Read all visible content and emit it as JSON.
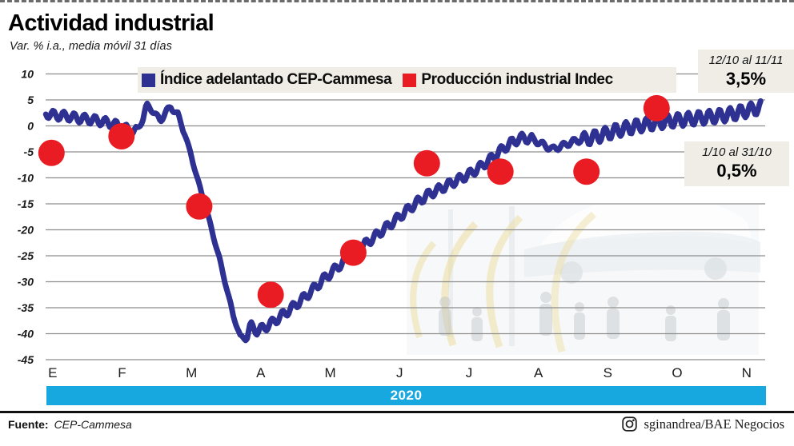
{
  "header": {
    "title": "Actividad industrial",
    "subtitle": "Var. % i.a., media móvil 31 días"
  },
  "legend": {
    "items": [
      {
        "label": "Índice adelantado CEP-Cammesa",
        "color": "#2e3192"
      },
      {
        "label": "Producción industrial Indec",
        "color": "#e91c23"
      }
    ]
  },
  "annotations": [
    {
      "period": "12/10 al 11/11",
      "value": "3,5%"
    },
    {
      "period": "1/10 al 31/10",
      "value": "0,5%"
    }
  ],
  "x_axis": {
    "year_band": "2020"
  },
  "footer": {
    "source_label": "Fuente:",
    "source_value": "CEP-Cammesa",
    "credit": "sginandrea/BAE Negocios",
    "credit_icon": "instagram-icon"
  },
  "colors": {
    "line_blue": "#2e3192",
    "dot_red": "#e91c23",
    "year_band_cyan": "#17a8df",
    "panel_beige": "#f0ede7",
    "gridline": "#8d8d8d"
  },
  "chart_data": {
    "type": "line",
    "title": "Actividad industrial",
    "unit": "Var. % i.a., media móvil 31 días",
    "x_months": [
      "E",
      "F",
      "M",
      "A",
      "M",
      "J",
      "J",
      "A",
      "S",
      "O",
      "N"
    ],
    "year": "2020",
    "ylim": [
      -45,
      10
    ],
    "y_ticks": [
      10,
      5,
      0,
      -5,
      -10,
      -15,
      -20,
      -25,
      -30,
      -35,
      -40,
      -45
    ],
    "grid": "horizontal",
    "legend_position": "top",
    "series": [
      {
        "name": "Índice adelantado CEP-Cammesa",
        "type": "line",
        "color": "#2e3192",
        "trend_points": [
          [
            -0.1,
            2.4
          ],
          [
            0.05,
            2.0
          ],
          [
            0.2,
            1.9
          ],
          [
            0.35,
            1.5
          ],
          [
            0.5,
            1.3
          ],
          [
            0.65,
            1.0
          ],
          [
            0.8,
            0.6
          ],
          [
            0.95,
            0.0
          ],
          [
            1.1,
            -0.8
          ],
          [
            1.22,
            -1.0
          ],
          [
            1.3,
            1.5
          ],
          [
            1.35,
            4.0
          ],
          [
            1.45,
            2.8
          ],
          [
            1.55,
            0.9
          ],
          [
            1.63,
            2.8
          ],
          [
            1.7,
            3.6
          ],
          [
            1.8,
            2.2
          ],
          [
            1.9,
            -1.5
          ],
          [
            2.0,
            -6.0
          ],
          [
            2.1,
            -11.0
          ],
          [
            2.2,
            -15.5
          ],
          [
            2.3,
            -20.5
          ],
          [
            2.4,
            -25.5
          ],
          [
            2.5,
            -31.0
          ],
          [
            2.6,
            -36.5
          ],
          [
            2.7,
            -40.5
          ],
          [
            2.78,
            -41.0
          ],
          [
            2.85,
            -38.5
          ],
          [
            2.95,
            -39.5
          ],
          [
            3.05,
            -38.8
          ],
          [
            3.15,
            -38.0
          ],
          [
            3.3,
            -36.5
          ],
          [
            3.45,
            -35.0
          ],
          [
            3.6,
            -33.3
          ],
          [
            3.75,
            -31.5
          ],
          [
            3.9,
            -29.5
          ],
          [
            4.05,
            -27.8
          ],
          [
            4.2,
            -26.0
          ],
          [
            4.35,
            -24.3
          ],
          [
            4.5,
            -22.8
          ],
          [
            4.65,
            -21.2
          ],
          [
            4.8,
            -19.6
          ],
          [
            4.95,
            -18.0
          ],
          [
            5.1,
            -16.3
          ],
          [
            5.25,
            -14.7
          ],
          [
            5.4,
            -13.3
          ],
          [
            5.55,
            -12.3
          ],
          [
            5.7,
            -11.3
          ],
          [
            5.85,
            -10.3
          ],
          [
            6.0,
            -9.3
          ],
          [
            6.15,
            -8.0
          ],
          [
            6.3,
            -6.5
          ],
          [
            6.45,
            -4.8
          ],
          [
            6.6,
            -3.3
          ],
          [
            6.75,
            -2.3
          ],
          [
            6.9,
            -2.5
          ],
          [
            7.05,
            -3.5
          ],
          [
            7.2,
            -4.5
          ],
          [
            7.35,
            -3.8
          ],
          [
            7.5,
            -3.0
          ],
          [
            7.65,
            -2.6
          ],
          [
            7.8,
            -2.2
          ],
          [
            7.95,
            -1.6
          ],
          [
            8.1,
            -1.0
          ],
          [
            8.25,
            -0.5
          ],
          [
            8.4,
            -0.1
          ],
          [
            8.55,
            0.3
          ],
          [
            8.7,
            0.6
          ],
          [
            8.85,
            0.9
          ],
          [
            9.0,
            1.1
          ],
          [
            9.15,
            1.3
          ],
          [
            9.3,
            1.5
          ],
          [
            9.45,
            1.7
          ],
          [
            9.6,
            1.9
          ],
          [
            9.75,
            2.2
          ],
          [
            9.9,
            2.6
          ],
          [
            10.05,
            3.1
          ],
          [
            10.2,
            3.6
          ]
        ],
        "wiggle": {
          "period": 0.15,
          "segments": [
            {
              "from": -0.2,
              "to": 1.25,
              "amp": 0.85
            },
            {
              "from": 1.25,
              "to": 1.9,
              "amp": 0.45
            },
            {
              "from": 1.9,
              "to": 2.8,
              "amp": 0.3
            },
            {
              "from": 2.8,
              "to": 6.9,
              "amp": 0.85
            },
            {
              "from": 6.9,
              "to": 7.6,
              "amp": 0.55
            },
            {
              "from": 7.6,
              "to": 10.25,
              "amp": 1.25
            }
          ]
        }
      },
      {
        "name": "Producción industrial Indec",
        "type": "scatter",
        "color": "#e91c23",
        "points": [
          {
            "month": "E",
            "u": -0.02,
            "value": -5.2
          },
          {
            "month": "F",
            "u": 0.99,
            "value": -2.0
          },
          {
            "month": "M",
            "u": 2.11,
            "value": -15.5
          },
          {
            "month": "A",
            "u": 3.14,
            "value": -32.5
          },
          {
            "month": "M",
            "u": 4.33,
            "value": -24.4
          },
          {
            "month": "J",
            "u": 5.39,
            "value": -7.2
          },
          {
            "month": "J",
            "u": 6.45,
            "value": -8.8
          },
          {
            "month": "A",
            "u": 7.69,
            "value": -8.8
          },
          {
            "month": "S/O",
            "u": 8.7,
            "value": 3.4
          }
        ]
      }
    ]
  }
}
